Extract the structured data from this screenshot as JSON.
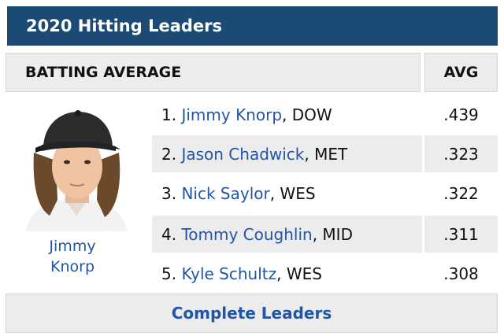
{
  "widget": {
    "title": "2020 Hitting Leaders"
  },
  "table": {
    "stat_header": "BATTING AVERAGE",
    "avg_header": "AVG",
    "rows": [
      {
        "rank": "1.",
        "name": "Jimmy Knorp",
        "team": ", DOW",
        "avg": ".439"
      },
      {
        "rank": "2.",
        "name": "Jason Chadwick",
        "team": ", MET",
        "avg": ".323"
      },
      {
        "rank": "3.",
        "name": "Nick Saylor",
        "team": ", WES",
        "avg": ".322"
      },
      {
        "rank": "4.",
        "name": "Tommy Coughlin",
        "team": ", MID",
        "avg": ".311"
      },
      {
        "rank": "5.",
        "name": "Kyle Schultz",
        "team": ", WES",
        "avg": ".308"
      }
    ]
  },
  "featured": {
    "name": "Jimmy\nKnorp"
  },
  "footer": {
    "link_label": "Complete Leaders"
  },
  "colors": {
    "title_bg": "#1b4a74",
    "link": "#2255a4",
    "row_alt": "#ececec"
  }
}
